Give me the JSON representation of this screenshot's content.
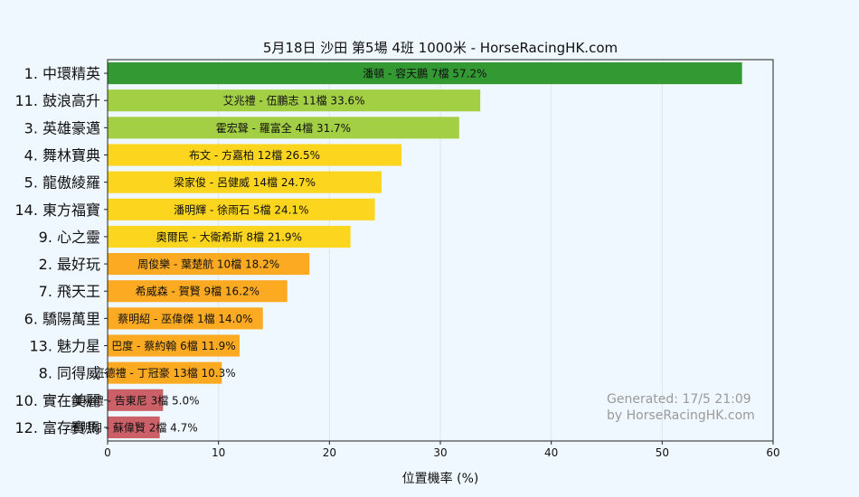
{
  "chart_data": {
    "type": "bar",
    "orientation": "horizontal",
    "title": "5月18日  沙田  第5場  4班  1000米 - HorseRacingHK.com",
    "xlabel": "位置機率 (%)",
    "ylabel": "",
    "xlim": [
      0,
      60
    ],
    "xticks": [
      "0",
      "10",
      "20",
      "30",
      "40",
      "50",
      "60"
    ],
    "grid": "vertical",
    "categories": [
      "1. 中環精英",
      "11. 鼓浪高升",
      "3. 英雄豪邁",
      "4. 舞林寶典",
      "5. 龍傲綾羅",
      "14. 東方福寶",
      "9. 心之靈",
      "2. 最好玩",
      "7. 飛天王",
      "6. 驕陽萬里",
      "13. 魅力星",
      "8. 同得威",
      "10. 實在美麗",
      "12. 富存寶馬"
    ],
    "values": [
      57.2,
      33.6,
      31.7,
      26.5,
      24.7,
      24.1,
      21.9,
      18.2,
      16.2,
      14.0,
      11.9,
      10.3,
      5.0,
      4.7
    ],
    "bar_labels": [
      "潘頓 - 容天鵬 7檔  57.2%",
      "艾兆禮 - 伍鵬志 11檔  33.6%",
      "霍宏聲 - 羅富全 4檔  31.7%",
      "布文 - 方嘉柏 12檔  26.5%",
      "梁家俊 - 呂健威 14檔  24.7%",
      "潘明輝 - 徐雨石 5檔  24.1%",
      "奧爾民 - 大衛希斯 8檔  21.9%",
      "周俊樂 - 葉楚航 10檔  18.2%",
      "希威森 - 賀賢 9檔  16.2%",
      "蔡明紹 - 巫偉傑 1檔  14.0%",
      "巴度 - 蔡約翰 6檔  11.9%",
      "班德禮 - 丁冠豪 13檔  10.3%",
      "鍾易禮 - 告東尼 3檔  5.0%",
      "董明朗 - 蘇偉賢 2檔  4.7%"
    ],
    "colors": [
      "#339933",
      "#a3cf45",
      "#a3cf45",
      "#fcd51e",
      "#fcd51e",
      "#fcd51e",
      "#fcd51e",
      "#fbaa22",
      "#fbaa22",
      "#fbaa22",
      "#fbaa22",
      "#fbaa22",
      "#cc6069",
      "#cc6069"
    ],
    "annotation": [
      "Generated: 17/5 21:09",
      "by HorseRacingHK.com"
    ],
    "colors_meta": {
      "background": "#f0f8ff",
      "plot_background": "#f0f8ff",
      "grid": "#dde6ef",
      "annotation": "#9a9a9a"
    }
  }
}
